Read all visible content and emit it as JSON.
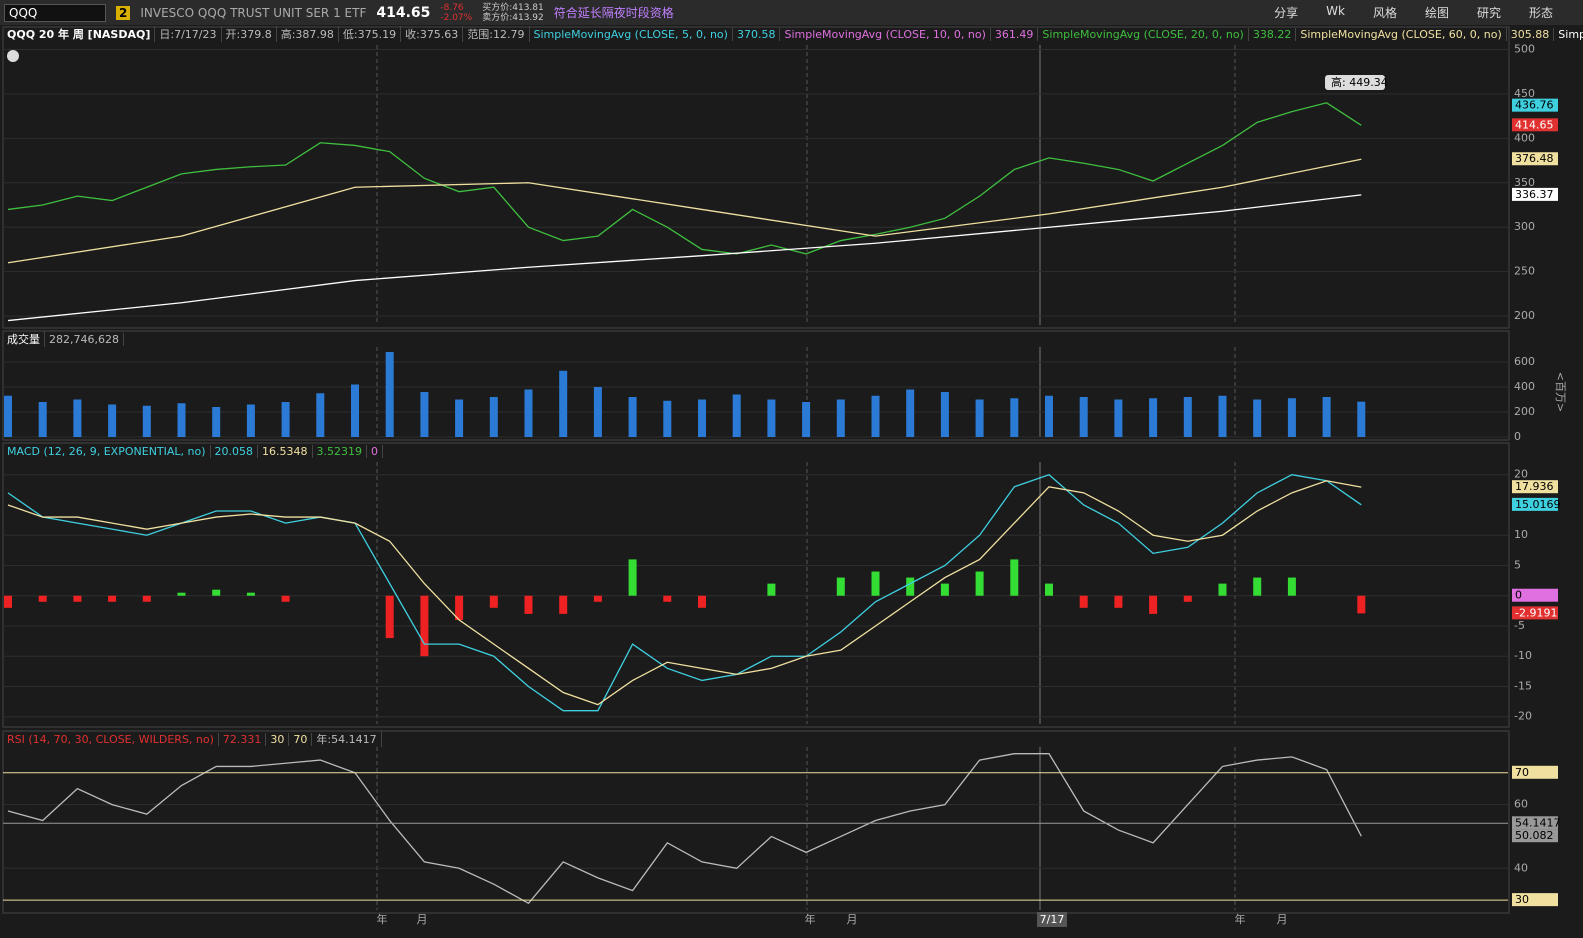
{
  "toolbar": {
    "symbol": "QQQ",
    "badge": "2",
    "description": "INVESCO QQQ TRUST UNIT SER 1 ETF",
    "last": "414.65",
    "change": "-8.76",
    "change_pct": "-2.07%",
    "bid": "买方价:413.81",
    "ask": "卖方价:413.92",
    "session": "符合延长隔夜时段资格",
    "buttons": [
      "分享",
      "Wk",
      "风格",
      "绘图",
      "研究",
      "形态"
    ]
  },
  "price_panel": {
    "title": "QQQ 20 年 周 [NASDAQ]",
    "info": [
      "日:7/17/23",
      "开:379.8",
      "高:387.98",
      "低:375.19",
      "收:375.63",
      "范围:12.79"
    ],
    "studies": [
      {
        "label": "SimpleMovingAvg (CLOSE, 5, 0, no)",
        "value": "370.58",
        "color": "#3fd0e0"
      },
      {
        "label": "SimpleMovingAvg (CLOSE, 10, 0, no)",
        "value": "361.49",
        "color": "#e070e0"
      },
      {
        "label": "SimpleMovingAvg (CLOSE, 20, 0, no)",
        "value": "338.22",
        "color": "#3fbf3f"
      },
      {
        "label": "SimpleMovingAvg (CLOSE, 60, 0, no)",
        "value": "305.88",
        "color": "#f0e0a0"
      },
      {
        "label": "SimpleMoving...",
        "color": "#ffffff"
      }
    ],
    "annotation": "高: 449.34",
    "chart_data": {
      "type": "line",
      "ylim": [
        190,
        505
      ],
      "yticks": [
        200,
        250,
        300,
        350,
        400,
        450,
        500
      ],
      "series": [
        {
          "color": "#3fbf3f",
          "values": [
            320,
            325,
            335,
            330,
            345,
            360,
            365,
            368,
            370,
            395,
            392,
            385,
            355,
            340,
            345,
            300,
            285,
            290,
            320,
            300,
            275,
            270,
            280,
            270,
            285,
            292,
            300,
            310,
            335,
            365,
            378,
            372,
            365,
            352,
            372,
            392,
            418,
            430,
            440,
            414.65
          ]
        },
        {
          "color": "#f0e0a0",
          "x": [
            0,
            5,
            10,
            15,
            20,
            25,
            30,
            35,
            39
          ],
          "values": [
            260,
            290,
            345,
            350,
            320,
            290,
            315,
            345,
            376.48
          ]
        },
        {
          "color": "#ffffff",
          "x": [
            0,
            5,
            10,
            15,
            20,
            25,
            30,
            35,
            39
          ],
          "values": [
            195,
            215,
            240,
            255,
            268,
            282,
            300,
            318,
            336.37
          ]
        }
      ],
      "markers": [
        {
          "value": 436.76,
          "color": "#3fd0e0"
        },
        {
          "value": 414.65,
          "color": "#e03030"
        },
        {
          "value": 376.48,
          "color": "#f0e0a0"
        },
        {
          "value": 336.37,
          "color": "#ffffff"
        }
      ]
    }
  },
  "volume_panel": {
    "title": "成交量",
    "total": "282,746,628",
    "unit": "<百万>",
    "chart_data": {
      "type": "bar",
      "ylim": [
        0,
        720
      ],
      "yticks": [
        0,
        200,
        400,
        600
      ],
      "color": "#2b7bd6",
      "values": [
        330,
        280,
        300,
        260,
        250,
        270,
        240,
        260,
        280,
        350,
        420,
        680,
        360,
        300,
        320,
        380,
        530,
        400,
        320,
        290,
        300,
        340,
        300,
        280,
        300,
        330,
        380,
        360,
        300,
        310,
        330,
        320,
        300,
        310,
        320,
        330,
        300,
        310,
        320,
        282.75
      ]
    }
  },
  "macd_panel": {
    "title": "MACD (12, 26, 9, EXPONENTIAL, no)",
    "readings": [
      {
        "text": "20.058",
        "color": "#3fd0e0"
      },
      {
        "text": "16.5348",
        "color": "#f0e0a0"
      },
      {
        "text": "3.52319",
        "color": "#3fbf3f"
      },
      {
        "text": "0",
        "color": "#e070e0"
      }
    ],
    "chart_data": {
      "type": "line",
      "ylim": [
        -21.2,
        22.1
      ],
      "yticks": [
        -20,
        -15,
        -10,
        -5,
        0,
        5,
        10,
        20
      ],
      "up_color": "#33dd33",
      "down_color": "#ee2222",
      "histogram": [
        -2,
        -1,
        -1,
        -1,
        -1,
        0.5,
        1,
        0.5,
        -1,
        0,
        0,
        -7,
        -10,
        -4,
        -2,
        -3,
        -3,
        -1,
        6,
        -1,
        -2,
        0,
        2,
        0,
        3,
        4,
        3,
        2,
        4,
        6,
        2,
        -2,
        -2,
        -3,
        -1,
        2,
        3,
        3,
        0,
        -2.92
      ],
      "series": [
        {
          "color": "#3fd0e0",
          "values": [
            17,
            13,
            12,
            11,
            10,
            12,
            14,
            14,
            12,
            13,
            12,
            2,
            -8,
            -8,
            -10,
            -15,
            -19,
            -19,
            -8,
            -12,
            -14,
            -13,
            -10,
            -10,
            -6,
            -1,
            2,
            5,
            10,
            18,
            20,
            15,
            12,
            7,
            8,
            12,
            17,
            20,
            19,
            15.02
          ]
        },
        {
          "color": "#f0e0a0",
          "values": [
            15,
            13,
            13,
            12,
            11,
            12,
            13,
            13.5,
            13,
            13,
            12,
            9,
            2,
            -4,
            -8,
            -12,
            -16,
            -18,
            -14,
            -11,
            -12,
            -13,
            -12,
            -10,
            -9,
            -5,
            -1,
            3,
            6,
            12,
            18,
            17,
            14,
            10,
            9,
            10,
            14,
            17,
            19,
            17.94
          ]
        }
      ],
      "markers": [
        {
          "value": 17.936,
          "color": "#f0e0a0"
        },
        {
          "value": 15.0169,
          "color": "#3fd0e0"
        },
        {
          "value": 0,
          "color": "#e070e0"
        },
        {
          "value": -2.9191,
          "color": "#e03030"
        }
      ]
    }
  },
  "rsi_panel": {
    "title": "RSI (14, 70, 30, CLOSE, WILDERS, no)",
    "readings": [
      {
        "text": "72.331",
        "color": "#e03030"
      },
      {
        "text": "30",
        "color": "#f0e0a0"
      },
      {
        "text": "70",
        "color": "#f0e0a0"
      },
      {
        "text": "年:54.1417",
        "color": "#bbbbbb"
      }
    ],
    "chart_data": {
      "type": "line",
      "ylim": [
        26.9,
        78.1
      ],
      "yticks": [
        40,
        60
      ],
      "series": [
        {
          "color": "#bbbbbb",
          "values": [
            58,
            55,
            65,
            60,
            57,
            66,
            72,
            72,
            73,
            74,
            70,
            55,
            42,
            40,
            35,
            29,
            42,
            37,
            33,
            48,
            42,
            40,
            50,
            45,
            50,
            55,
            58,
            60,
            74,
            76,
            76,
            58,
            52,
            48,
            60,
            72,
            74,
            75,
            71,
            50.08
          ]
        }
      ],
      "markers": [
        {
          "value": 70,
          "color": "#f0e0a0",
          "level": true
        },
        {
          "value": 30,
          "color": "#f0e0a0",
          "level": true
        },
        {
          "value": 54.1417,
          "color": "#999999",
          "level": true
        },
        {
          "value": 50.082,
          "color": "#999999"
        }
      ]
    }
  },
  "time_axis": [
    "年",
    "月",
    "年",
    "月",
    "7/17",
    "年",
    "月"
  ]
}
